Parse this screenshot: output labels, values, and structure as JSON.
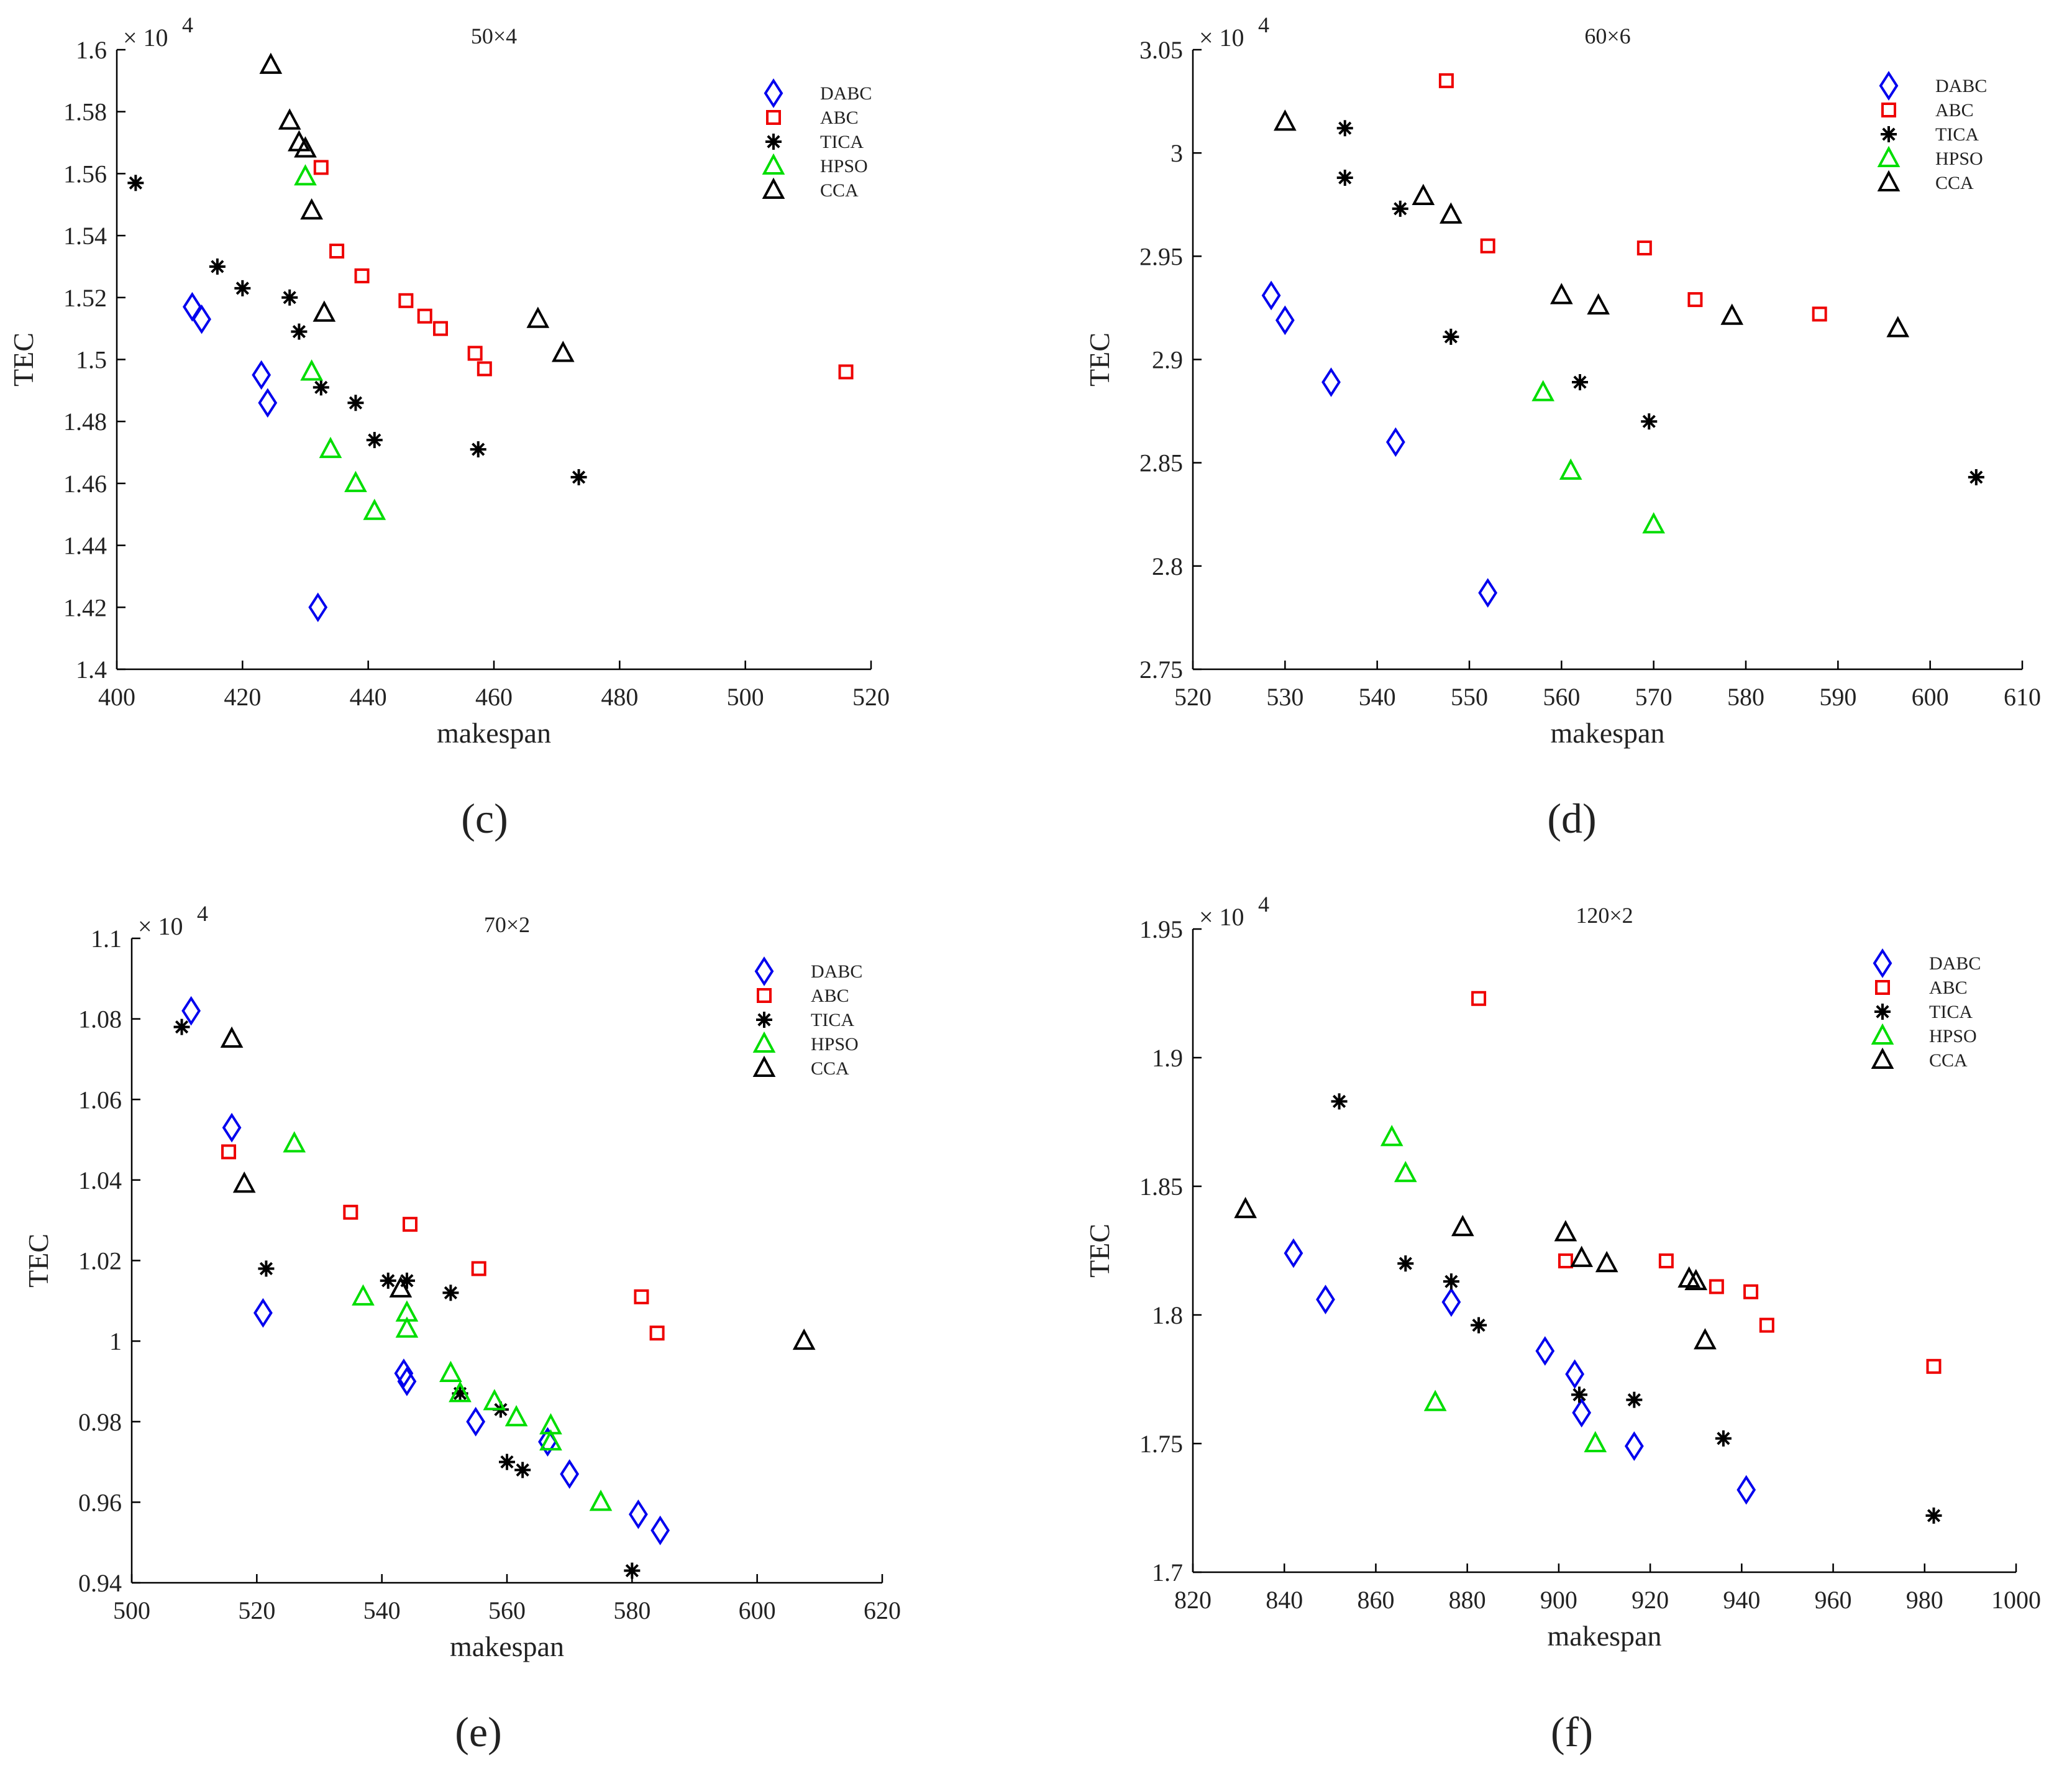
{
  "colors": {
    "DABC": "#0000ee",
    "ABC": "#ee0000",
    "TICA": "#000000",
    "HPSO": "#00dd00",
    "CCA": "#000000"
  },
  "chart_data": [
    {
      "type": "scatter",
      "panel_label": "(c)",
      "title": "50×4",
      "xlabel": "makespan",
      "ylabel": "TEC",
      "y_scale_label": "× 10",
      "y_scale_exp": "4",
      "xlim": [
        400,
        520
      ],
      "ylim": [
        1.4,
        1.6
      ],
      "xticks": [
        400,
        420,
        440,
        460,
        480,
        500,
        520
      ],
      "xtick_labels": [
        "400",
        "420",
        "440",
        "460",
        "480",
        "500",
        "520"
      ],
      "yticks": [
        1.4,
        1.42,
        1.44,
        1.46,
        1.48,
        1.5,
        1.52,
        1.54,
        1.56,
        1.58,
        1.6
      ],
      "ytick_labels": [
        "1.4",
        "1.42",
        "1.44",
        "1.46",
        "1.48",
        "1.5",
        "1.52",
        "1.54",
        "1.56",
        "1.58",
        "1.6"
      ],
      "legend": [
        "DABC",
        "ABC",
        "TICA",
        "HPSO",
        "CCA"
      ],
      "series": [
        {
          "name": "DABC",
          "marker": "diamond",
          "points": [
            [
              412,
              1.517
            ],
            [
              413.5,
              1.513
            ],
            [
              423,
              1.495
            ],
            [
              424,
              1.486
            ],
            [
              432,
              1.42
            ]
          ]
        },
        {
          "name": "ABC",
          "marker": "square",
          "points": [
            [
              432.5,
              1.562
            ],
            [
              435,
              1.535
            ],
            [
              439,
              1.527
            ],
            [
              446,
              1.519
            ],
            [
              449,
              1.514
            ],
            [
              451.5,
              1.51
            ],
            [
              457,
              1.502
            ],
            [
              458.5,
              1.497
            ],
            [
              516,
              1.496
            ]
          ]
        },
        {
          "name": "TICA",
          "marker": "star",
          "points": [
            [
              403,
              1.557
            ],
            [
              416,
              1.53
            ],
            [
              420,
              1.523
            ],
            [
              427.5,
              1.52
            ],
            [
              429,
              1.509
            ],
            [
              432.5,
              1.491
            ],
            [
              438,
              1.486
            ],
            [
              441,
              1.474
            ],
            [
              457.5,
              1.471
            ],
            [
              473.5,
              1.462
            ]
          ]
        },
        {
          "name": "HPSO",
          "marker": "triangle",
          "points": [
            [
              430,
              1.559
            ],
            [
              431,
              1.496
            ],
            [
              434,
              1.471
            ],
            [
              438,
              1.46
            ],
            [
              441,
              1.451
            ]
          ]
        },
        {
          "name": "CCA",
          "marker": "triangle",
          "points": [
            [
              424.5,
              1.595
            ],
            [
              427.5,
              1.577
            ],
            [
              429,
              1.57
            ],
            [
              430,
              1.568
            ],
            [
              431,
              1.548
            ],
            [
              433,
              1.515
            ],
            [
              467,
              1.513
            ],
            [
              471,
              1.502
            ]
          ]
        }
      ]
    },
    {
      "type": "scatter",
      "panel_label": "(d)",
      "title": "60×6",
      "xlabel": "makespan",
      "ylabel": "TEC",
      "y_scale_label": "× 10",
      "y_scale_exp": "4",
      "xlim": [
        520,
        610
      ],
      "ylim": [
        2.75,
        3.05
      ],
      "xticks": [
        520,
        530,
        540,
        550,
        560,
        570,
        580,
        590,
        600,
        610
      ],
      "xtick_labels": [
        "520",
        "530",
        "540",
        "550",
        "560",
        "570",
        "580",
        "590",
        "600",
        "610"
      ],
      "yticks": [
        2.75,
        2.8,
        2.85,
        2.9,
        2.95,
        3.0,
        3.05
      ],
      "ytick_labels": [
        "2.75",
        "2.8",
        "2.85",
        "2.9",
        "2.95",
        "3",
        "3.05"
      ],
      "legend": [
        "DABC",
        "ABC",
        "TICA",
        "HPSO",
        "CCA"
      ],
      "series": [
        {
          "name": "DABC",
          "marker": "diamond",
          "points": [
            [
              528.5,
              2.931
            ],
            [
              530,
              2.919
            ],
            [
              535,
              2.889
            ],
            [
              542,
              2.86
            ],
            [
              552,
              2.787
            ]
          ]
        },
        {
          "name": "ABC",
          "marker": "square",
          "points": [
            [
              547.5,
              3.035
            ],
            [
              552,
              2.955
            ],
            [
              569,
              2.954
            ],
            [
              574.5,
              2.929
            ],
            [
              588,
              2.922
            ]
          ]
        },
        {
          "name": "TICA",
          "marker": "star",
          "points": [
            [
              536.5,
              3.012
            ],
            [
              536.5,
              2.988
            ],
            [
              542.5,
              2.973
            ],
            [
              548,
              2.911
            ],
            [
              562,
              2.889
            ],
            [
              569.5,
              2.87
            ],
            [
              605,
              2.843
            ]
          ]
        },
        {
          "name": "HPSO",
          "marker": "triangle",
          "points": [
            [
              558,
              2.884
            ],
            [
              561,
              2.846
            ],
            [
              570,
              2.82
            ]
          ]
        },
        {
          "name": "CCA",
          "marker": "triangle",
          "points": [
            [
              530,
              3.015
            ],
            [
              545,
              2.979
            ],
            [
              548,
              2.97
            ],
            [
              560,
              2.931
            ],
            [
              564,
              2.926
            ],
            [
              578.5,
              2.921
            ],
            [
              596.5,
              2.915
            ]
          ]
        }
      ]
    },
    {
      "type": "scatter",
      "panel_label": "(e)",
      "title": "70×2",
      "xlabel": "makespan",
      "ylabel": "TEC",
      "y_scale_label": "× 10",
      "y_scale_exp": "4",
      "xlim": [
        500,
        620
      ],
      "ylim": [
        0.94,
        1.1
      ],
      "xticks": [
        500,
        520,
        540,
        560,
        580,
        600,
        620
      ],
      "xtick_labels": [
        "500",
        "520",
        "540",
        "560",
        "580",
        "600",
        "620"
      ],
      "yticks": [
        0.94,
        0.96,
        0.98,
        1.0,
        1.02,
        1.04,
        1.06,
        1.08,
        1.1
      ],
      "ytick_labels": [
        "0.94",
        "0.96",
        "0.98",
        "1",
        "1.02",
        "1.04",
        "1.06",
        "1.08",
        "1.1"
      ],
      "legend": [
        "DABC",
        "ABC",
        "TICA",
        "HPSO",
        "CCA"
      ],
      "series": [
        {
          "name": "DABC",
          "marker": "diamond",
          "points": [
            [
              509.5,
              1.082
            ],
            [
              516,
              1.053
            ],
            [
              521,
              1.007
            ],
            [
              543.5,
              0.992
            ],
            [
              544,
              0.99
            ],
            [
              555,
              0.98
            ],
            [
              566.5,
              0.975
            ],
            [
              570,
              0.967
            ],
            [
              581,
              0.957
            ],
            [
              584.5,
              0.953
            ]
          ]
        },
        {
          "name": "ABC",
          "marker": "square",
          "points": [
            [
              515.5,
              1.047
            ],
            [
              535,
              1.032
            ],
            [
              544.5,
              1.029
            ],
            [
              555.5,
              1.018
            ],
            [
              581.5,
              1.011
            ],
            [
              584,
              1.002
            ]
          ]
        },
        {
          "name": "TICA",
          "marker": "star",
          "points": [
            [
              508,
              1.078
            ],
            [
              521.5,
              1.018
            ],
            [
              541,
              1.015
            ],
            [
              544,
              1.015
            ],
            [
              551,
              1.012
            ],
            [
              552.5,
              0.987
            ],
            [
              559,
              0.983
            ],
            [
              560,
              0.97
            ],
            [
              562.5,
              0.968
            ],
            [
              580,
              0.943
            ]
          ]
        },
        {
          "name": "HPSO",
          "marker": "triangle",
          "points": [
            [
              526,
              1.049
            ],
            [
              537,
              1.011
            ],
            [
              544,
              1.007
            ],
            [
              544,
              1.003
            ],
            [
              551,
              0.992
            ],
            [
              552.5,
              0.987
            ],
            [
              558,
              0.985
            ],
            [
              561.5,
              0.981
            ],
            [
              567,
              0.979
            ],
            [
              567,
              0.975
            ],
            [
              575,
              0.96
            ]
          ]
        },
        {
          "name": "CCA",
          "marker": "triangle",
          "points": [
            [
              516,
              1.075
            ],
            [
              518,
              1.039
            ],
            [
              543,
              1.013
            ],
            [
              607.5,
              1.0
            ]
          ]
        }
      ]
    },
    {
      "type": "scatter",
      "panel_label": "(f)",
      "title": "120×2",
      "xlabel": "makespan",
      "ylabel": "TEC",
      "y_scale_label": "× 10",
      "y_scale_exp": "4",
      "xlim": [
        820,
        1000
      ],
      "ylim": [
        1.7,
        1.95
      ],
      "xticks": [
        820,
        840,
        860,
        880,
        900,
        920,
        940,
        960,
        980,
        1000
      ],
      "xtick_labels": [
        "820",
        "840",
        "860",
        "880",
        "900",
        "920",
        "940",
        "960",
        "980",
        "1000"
      ],
      "yticks": [
        1.7,
        1.75,
        1.8,
        1.85,
        1.9,
        1.95
      ],
      "ytick_labels": [
        "1.7",
        "1.75",
        "1.8",
        "1.85",
        "1.9",
        "1.95"
      ],
      "legend": [
        "DABC",
        "ABC",
        "TICA",
        "HPSO",
        "CCA"
      ],
      "series": [
        {
          "name": "DABC",
          "marker": "diamond",
          "points": [
            [
              842,
              1.824
            ],
            [
              849,
              1.806
            ],
            [
              876.5,
              1.805
            ],
            [
              897,
              1.786
            ],
            [
              903.5,
              1.777
            ],
            [
              905,
              1.762
            ],
            [
              916.5,
              1.749
            ],
            [
              941,
              1.732
            ]
          ]
        },
        {
          "name": "ABC",
          "marker": "square",
          "points": [
            [
              882.5,
              1.923
            ],
            [
              901.5,
              1.821
            ],
            [
              923.5,
              1.821
            ],
            [
              934.5,
              1.811
            ],
            [
              942,
              1.809
            ],
            [
              945.5,
              1.796
            ],
            [
              982,
              1.78
            ]
          ]
        },
        {
          "name": "TICA",
          "marker": "star",
          "points": [
            [
              852,
              1.883
            ],
            [
              866.5,
              1.82
            ],
            [
              876.5,
              1.813
            ],
            [
              882.5,
              1.796
            ],
            [
              904.5,
              1.769
            ],
            [
              916.5,
              1.767
            ],
            [
              936,
              1.752
            ],
            [
              982,
              1.722
            ]
          ]
        },
        {
          "name": "HPSO",
          "marker": "triangle",
          "points": [
            [
              863.5,
              1.869
            ],
            [
              866.5,
              1.855
            ],
            [
              873,
              1.766
            ],
            [
              908,
              1.75
            ]
          ]
        },
        {
          "name": "CCA",
          "marker": "triangle",
          "points": [
            [
              831.5,
              1.841
            ],
            [
              879,
              1.834
            ],
            [
              901.5,
              1.832
            ],
            [
              905,
              1.822
            ],
            [
              910.5,
              1.82
            ],
            [
              928.5,
              1.814
            ],
            [
              930,
              1.813
            ],
            [
              932,
              1.79
            ]
          ]
        }
      ]
    }
  ]
}
